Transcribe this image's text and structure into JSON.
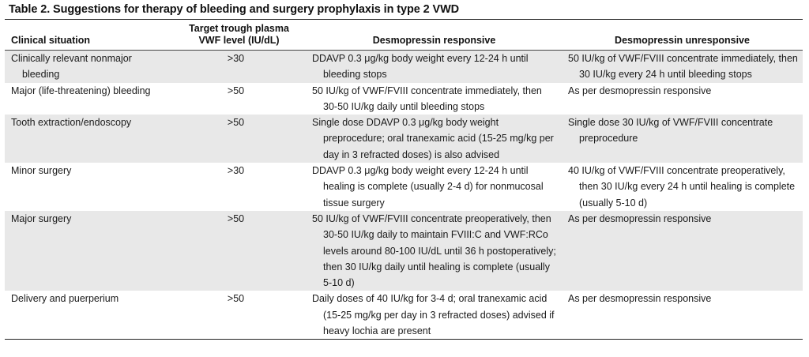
{
  "caption": "Table 2. Suggestions for therapy of bleeding and surgery prophylaxis in type 2 VWD",
  "headers": {
    "situation": "Clinical situation",
    "target_line1": "Target trough plasma",
    "target_line2": "VWF level (IU/dL)",
    "responsive": "Desmopressin responsive",
    "unresponsive": "Desmopressin unresponsive"
  },
  "rows": [
    {
      "situation": "Clinically relevant nonmajor bleeding",
      "target": ">30",
      "responsive": "DDAVP 0.3 μg/kg body weight every 12-24 h until bleeding stops",
      "unresponsive": "50 IU/kg of VWF/FVIII concentrate immediately, then 30 IU/kg every 24 h until bleeding stops"
    },
    {
      "situation": "Major (life-threatening) bleeding",
      "target": ">50",
      "responsive": "50 IU/kg of VWF/FVIII concentrate immediately, then 30-50 IU/kg daily until bleeding stops",
      "unresponsive": "As per desmopressin responsive"
    },
    {
      "situation": "Tooth extraction/endoscopy",
      "target": ">50",
      "responsive": "Single dose DDAVP 0.3 μg/kg body weight preprocedure; oral tranexamic acid (15-25 mg/kg per day in 3 refracted doses) is also advised",
      "unresponsive": "Single dose 30 IU/kg of VWF/FVIII concentrate preprocedure"
    },
    {
      "situation": "Minor surgery",
      "target": ">30",
      "responsive": "DDAVP 0.3 μg/kg body weight every 12-24 h until healing is complete (usually 2-4 d) for nonmucosal tissue surgery",
      "unresponsive": "40 IU/kg of VWF/FVIII concentrate preoperatively, then 30 IU/kg every 24 h until healing is complete (usually 5-10 d)"
    },
    {
      "situation": "Major surgery",
      "target": ">50",
      "responsive": "50 IU/kg of VWF/FVIII concentrate preoperatively, then 30-50 IU/kg daily to maintain FVIII:C and VWF:RCo levels around 80-100 IU/dL until 36 h postoperatively; then 30 IU/kg daily until healing is complete (usually 5-10 d)",
      "unresponsive": "As per desmopressin responsive"
    },
    {
      "situation": "Delivery and puerperium",
      "target": ">50",
      "responsive": "Daily doses of 40 IU/kg for 3-4 d; oral tranexamic acid (15-25 mg/kg per day in 3 refracted doses) advised if heavy lochia are present",
      "unresponsive": "As per desmopressin responsive"
    }
  ]
}
